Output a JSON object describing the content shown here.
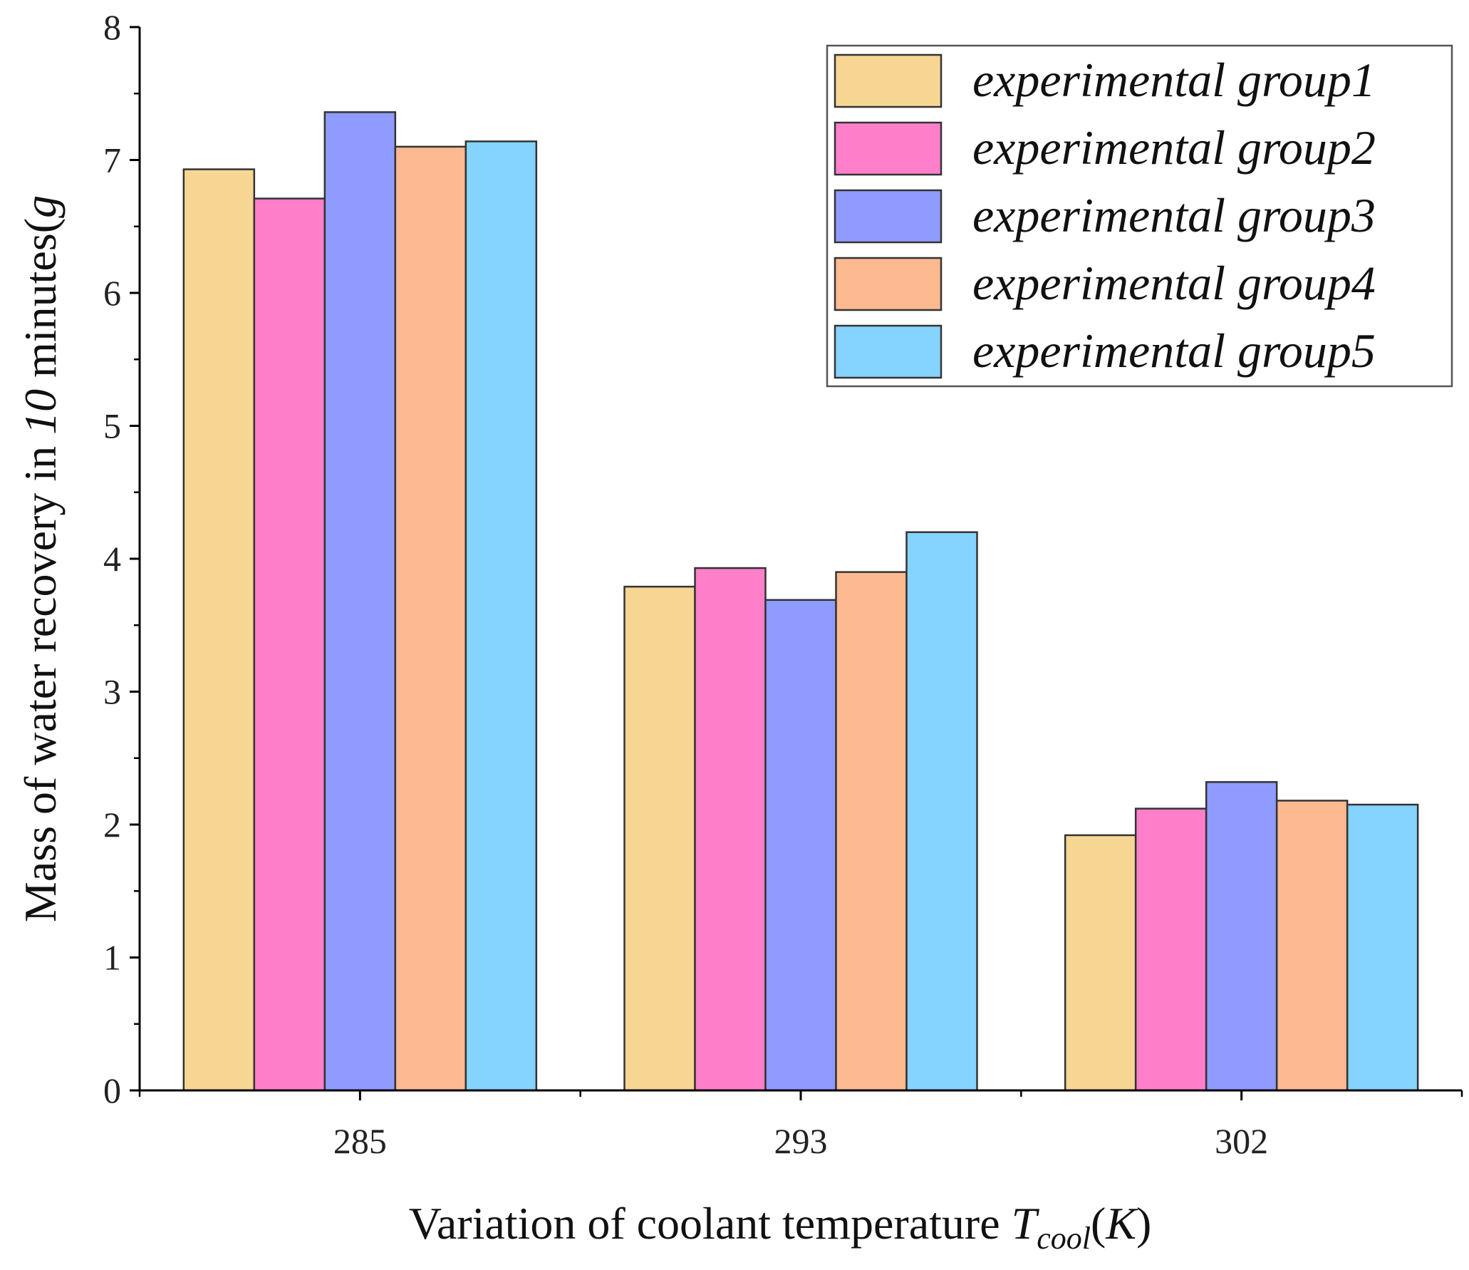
{
  "chart_data": {
    "type": "bar",
    "title": "",
    "categories": [
      "285",
      "293",
      "302"
    ],
    "series": [
      {
        "name": "experimental group1",
        "values": [
          6.93,
          3.79,
          1.92
        ],
        "color": "#F7D593"
      },
      {
        "name": "experimental group2",
        "values": [
          6.71,
          3.93,
          2.12
        ],
        "color": "#FF7FCB"
      },
      {
        "name": "experimental group3",
        "values": [
          7.36,
          3.69,
          2.32
        ],
        "color": "#8F9BFF"
      },
      {
        "name": "experimental group4",
        "values": [
          7.1,
          3.9,
          2.18
        ],
        "color": "#FDB98F"
      },
      {
        "name": "experimental group5",
        "values": [
          7.14,
          4.2,
          2.15
        ],
        "color": "#84D4FF"
      }
    ],
    "ylim": [
      0,
      8
    ],
    "yticks": [
      0,
      1,
      2,
      3,
      4,
      5,
      6,
      7,
      8
    ],
    "xlabel": {
      "prefix": "Variation of coolant temperature ",
      "symbol": "T",
      "subscript": "cool",
      "open": "(",
      "unit": "K",
      "close": ")"
    },
    "ylabel": {
      "prefix": "Mass of water recovery in ",
      "italic_number": "10",
      "middle": " minutes(",
      "unit": "g"
    },
    "legend_position": "top-right",
    "grid": false
  }
}
